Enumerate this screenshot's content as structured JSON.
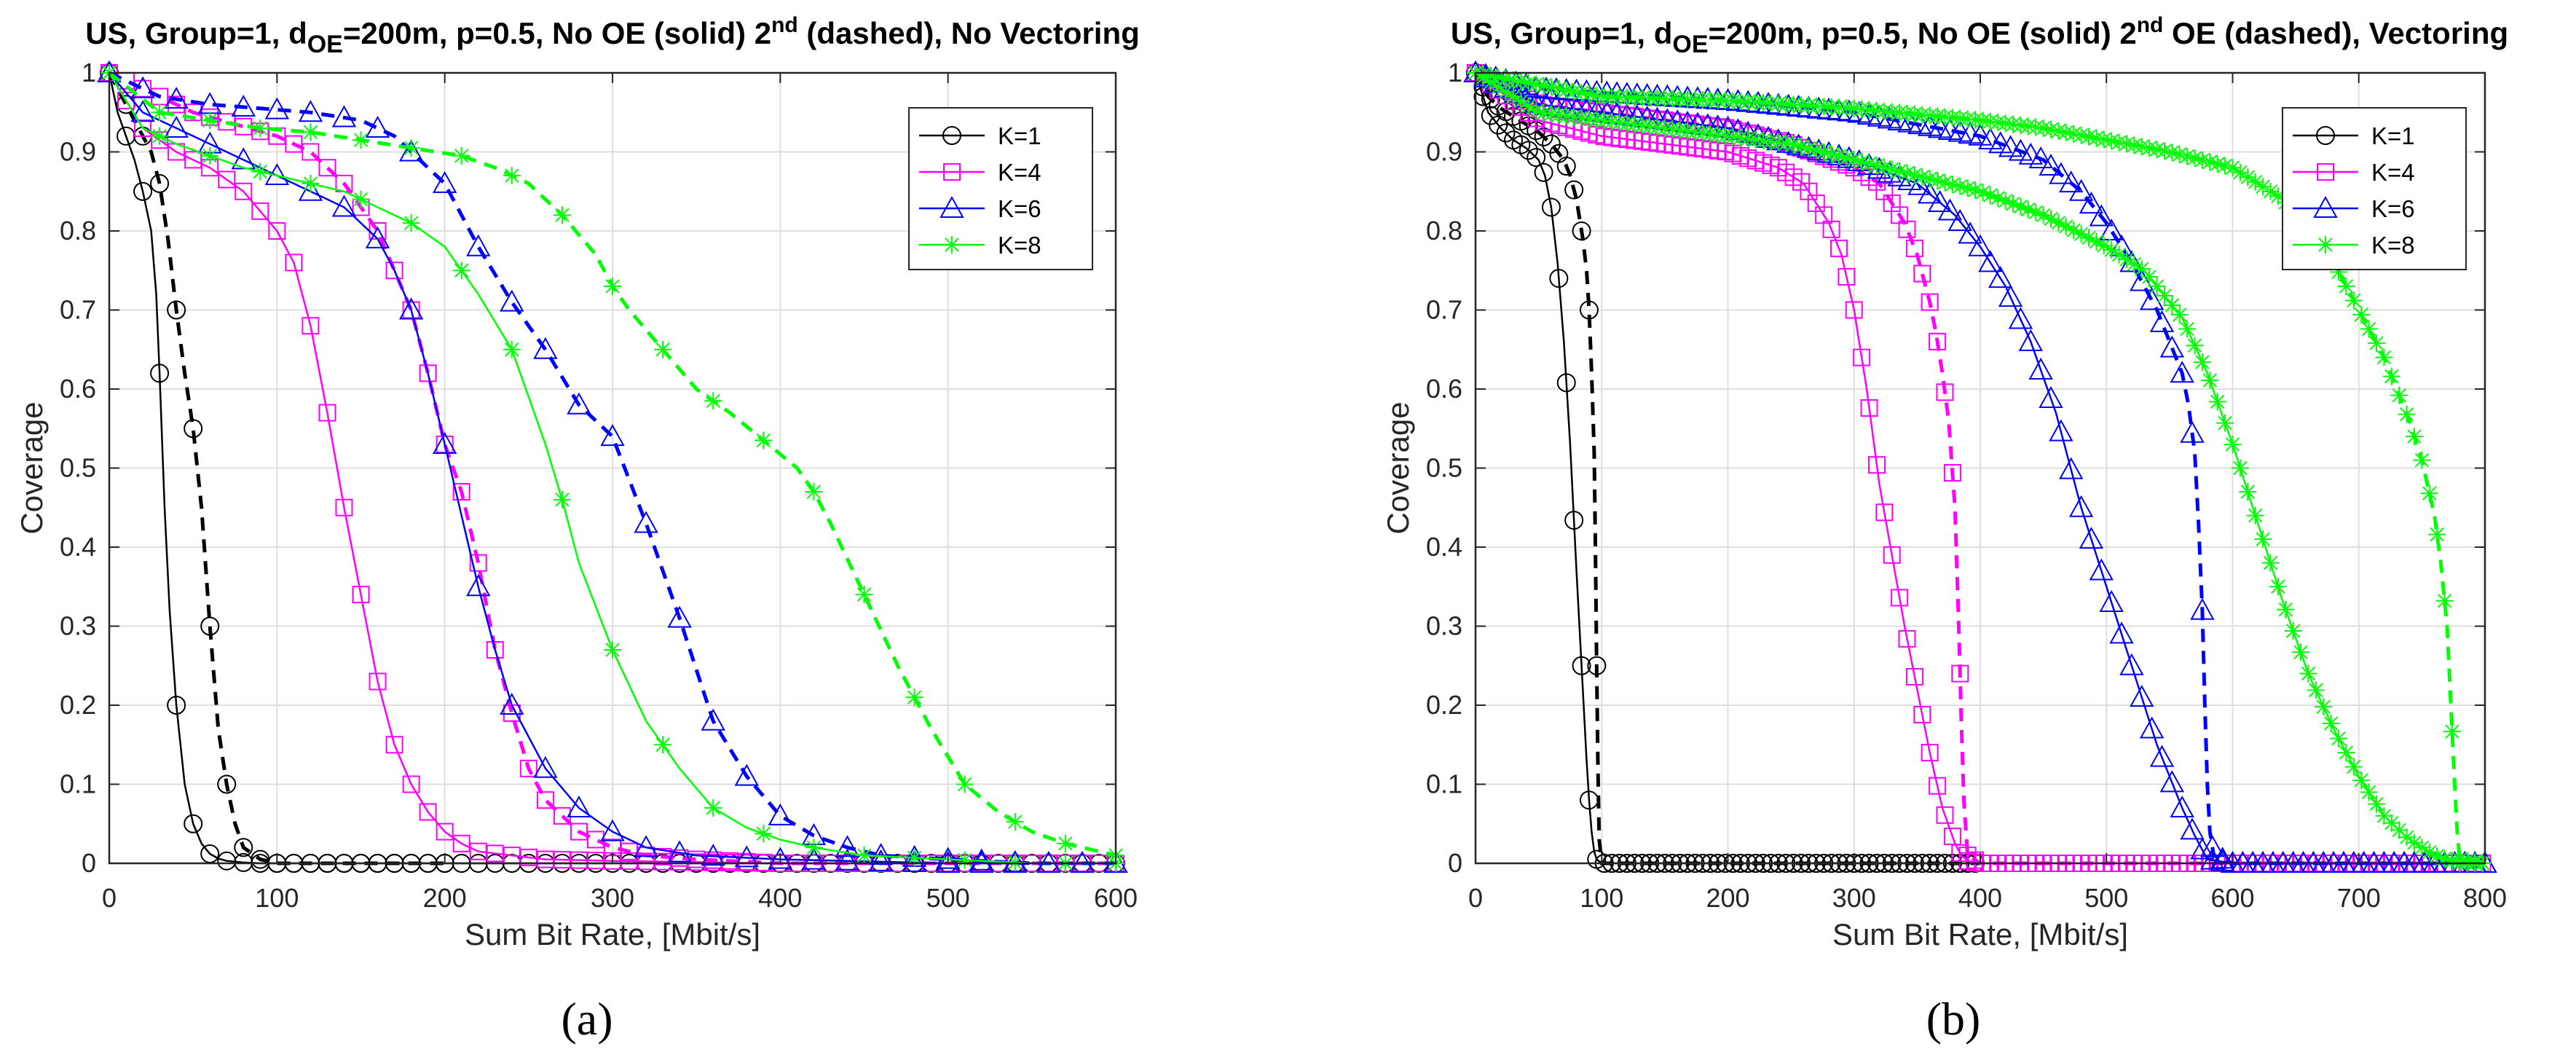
{
  "chart_data": [
    {
      "type": "line",
      "title": {
        "parts": [
          "US, Group=1, d",
          "OE",
          "=200m, p=0.5, No OE (solid) 2",
          "nd",
          " (dashed), No Vectoring"
        ]
      },
      "panel_label": "(a)",
      "xlabel": "Sum Bit Rate, [Mbit/s]",
      "ylabel": "Coverage",
      "xlim": [
        0,
        600
      ],
      "ylim": [
        0,
        1
      ],
      "xticks": [
        0,
        100,
        200,
        300,
        400,
        500,
        600
      ],
      "yticks": [
        0,
        0.1,
        0.2,
        0.3,
        0.4,
        0.5,
        0.6,
        0.7,
        0.8,
        0.9,
        1
      ],
      "ytick_labels": [
        "0",
        "0.1",
        "0.2",
        "0.3",
        "0.4",
        "0.5",
        "0.6",
        "0.7",
        "0.8",
        "0.9",
        "1"
      ],
      "grid": true,
      "legend_position": "top-right",
      "legend": [
        "K=1",
        "K=4",
        "K=6",
        "K=8"
      ],
      "series": [
        {
          "name": "K=1",
          "style": "solid",
          "color": "#000000",
          "marker": "circle",
          "x": [
            0,
            5,
            10,
            15,
            20,
            25,
            28,
            30,
            33,
            36,
            40,
            45,
            50,
            55,
            60,
            65,
            70,
            80,
            90,
            100,
            150,
            200,
            300,
            400,
            500,
            600
          ],
          "y": [
            1.0,
            0.95,
            0.92,
            0.89,
            0.85,
            0.8,
            0.72,
            0.62,
            0.45,
            0.32,
            0.2,
            0.1,
            0.05,
            0.025,
            0.012,
            0.006,
            0.003,
            0.001,
            0,
            0,
            0,
            0,
            0,
            0,
            0,
            0
          ]
        },
        {
          "name": "K=1",
          "style": "dashed",
          "color": "#000000",
          "marker": "circle",
          "x": [
            0,
            10,
            20,
            25,
            30,
            35,
            40,
            45,
            50,
            55,
            60,
            65,
            70,
            75,
            80,
            90,
            100,
            150,
            200
          ],
          "y": [
            1.0,
            0.96,
            0.92,
            0.9,
            0.86,
            0.79,
            0.7,
            0.62,
            0.55,
            0.45,
            0.3,
            0.17,
            0.1,
            0.05,
            0.02,
            0.005,
            0,
            0,
            0
          ]
        },
        {
          "name": "K=4",
          "style": "solid",
          "color": "#ff00ff",
          "marker": "square",
          "x": [
            0,
            20,
            40,
            60,
            80,
            100,
            110,
            120,
            130,
            140,
            150,
            160,
            170,
            180,
            190,
            200,
            210,
            220,
            240,
            260,
            300,
            400,
            500,
            600
          ],
          "y": [
            1.0,
            0.93,
            0.9,
            0.88,
            0.85,
            0.8,
            0.76,
            0.68,
            0.57,
            0.45,
            0.34,
            0.23,
            0.15,
            0.1,
            0.065,
            0.04,
            0.025,
            0.015,
            0.01,
            0.005,
            0.003,
            0,
            0,
            0
          ]
        },
        {
          "name": "K=4",
          "style": "dashed",
          "color": "#ff00ff",
          "marker": "square",
          "x": [
            0,
            50,
            100,
            120,
            140,
            160,
            180,
            190,
            200,
            210,
            220,
            230,
            240,
            250,
            260,
            280,
            300,
            320,
            350,
            400,
            500,
            600
          ],
          "y": [
            1.0,
            0.95,
            0.92,
            0.9,
            0.86,
            0.8,
            0.7,
            0.62,
            0.53,
            0.47,
            0.38,
            0.27,
            0.19,
            0.12,
            0.08,
            0.04,
            0.02,
            0.01,
            0.005,
            0,
            0,
            0
          ]
        },
        {
          "name": "K=6",
          "style": "solid",
          "color": "#0000ff",
          "marker": "triangle",
          "x": [
            0,
            20,
            40,
            60,
            80,
            100,
            120,
            140,
            160,
            170,
            180,
            190,
            200,
            210,
            220,
            230,
            240,
            260,
            280,
            300,
            320,
            350,
            400,
            500,
            600
          ],
          "y": [
            1.0,
            0.95,
            0.93,
            0.91,
            0.89,
            0.87,
            0.85,
            0.83,
            0.79,
            0.75,
            0.7,
            0.62,
            0.53,
            0.44,
            0.35,
            0.27,
            0.2,
            0.12,
            0.07,
            0.04,
            0.02,
            0.01,
            0.005,
            0,
            0
          ]
        },
        {
          "name": "K=6",
          "style": "dashed",
          "color": "#0000ff",
          "marker": "triangle",
          "x": [
            0,
            30,
            60,
            90,
            120,
            150,
            170,
            180,
            190,
            200,
            210,
            220,
            240,
            260,
            280,
            300,
            320,
            340,
            360,
            380,
            400,
            420,
            440,
            460,
            500,
            550,
            600
          ],
          "y": [
            1.0,
            0.97,
            0.96,
            0.955,
            0.95,
            0.94,
            0.92,
            0.9,
            0.88,
            0.86,
            0.82,
            0.78,
            0.71,
            0.65,
            0.58,
            0.54,
            0.43,
            0.31,
            0.18,
            0.11,
            0.06,
            0.035,
            0.02,
            0.01,
            0.005,
            0,
            0
          ]
        },
        {
          "name": "K=8",
          "style": "solid",
          "color": "#00ff00",
          "marker": "star",
          "x": [
            0,
            20,
            40,
            60,
            80,
            100,
            120,
            140,
            160,
            180,
            200,
            220,
            240,
            260,
            270,
            280,
            300,
            320,
            340,
            360,
            380,
            400,
            420,
            450,
            500,
            550,
            600
          ],
          "y": [
            1.0,
            0.93,
            0.91,
            0.895,
            0.88,
            0.87,
            0.86,
            0.85,
            0.83,
            0.81,
            0.78,
            0.72,
            0.65,
            0.53,
            0.46,
            0.38,
            0.27,
            0.18,
            0.12,
            0.07,
            0.045,
            0.03,
            0.02,
            0.01,
            0.005,
            0,
            0
          ]
        },
        {
          "name": "K=8",
          "style": "dashed",
          "color": "#00ff00",
          "marker": "star",
          "x": [
            0,
            30,
            60,
            90,
            120,
            150,
            180,
            210,
            230,
            250,
            270,
            290,
            300,
            310,
            330,
            350,
            370,
            390,
            410,
            420,
            430,
            450,
            470,
            490,
            510,
            530,
            550,
            570,
            590,
            600
          ],
          "y": [
            1.0,
            0.95,
            0.94,
            0.93,
            0.925,
            0.915,
            0.905,
            0.895,
            0.88,
            0.86,
            0.82,
            0.77,
            0.73,
            0.7,
            0.65,
            0.6,
            0.57,
            0.535,
            0.5,
            0.47,
            0.43,
            0.34,
            0.25,
            0.17,
            0.1,
            0.065,
            0.04,
            0.025,
            0.015,
            0.01
          ]
        }
      ]
    },
    {
      "type": "line",
      "title": {
        "parts": [
          "US, Group=1, d",
          "OE",
          "=200m, p=0.5, No OE (solid) 2",
          "nd",
          " OE (dashed), Vectoring"
        ]
      },
      "panel_label": "(b)",
      "xlabel": "Sum Bit Rate, [Mbit/s]",
      "ylabel": "Coverage",
      "xlim": [
        0,
        800
      ],
      "ylim": [
        0,
        1
      ],
      "xticks": [
        0,
        100,
        200,
        300,
        400,
        500,
        600,
        700,
        800
      ],
      "yticks": [
        0,
        0.1,
        0.2,
        0.3,
        0.4,
        0.5,
        0.6,
        0.7,
        0.8,
        0.9,
        1
      ],
      "ytick_labels": [
        "0",
        "0.1",
        "0.2",
        "0.3",
        "0.4",
        "0.5",
        "0.6",
        "0.7",
        "0.8",
        "0.9",
        "1"
      ],
      "grid": true,
      "legend_position": "top-right",
      "legend": [
        "K=1",
        "K=4",
        "K=6",
        "K=8"
      ],
      "series": [
        {
          "name": "K=1",
          "style": "solid",
          "color": "#000000",
          "marker": "circle",
          "x": [
            0,
            10,
            20,
            30,
            40,
            50,
            55,
            60,
            65,
            70,
            75,
            80,
            85,
            88,
            90,
            92,
            94,
            96,
            100,
            150,
            200,
            300,
            390
          ],
          "y": [
            1.0,
            0.95,
            0.93,
            0.915,
            0.905,
            0.89,
            0.87,
            0.83,
            0.76,
            0.66,
            0.53,
            0.37,
            0.22,
            0.13,
            0.08,
            0.04,
            0.015,
            0.005,
            0,
            0,
            0,
            0,
            0
          ]
        },
        {
          "name": "K=1",
          "style": "dashed",
          "color": "#000000",
          "marker": "circle",
          "x": [
            0,
            10,
            20,
            30,
            40,
            50,
            60,
            70,
            75,
            80,
            85,
            88,
            90,
            92,
            94,
            95,
            96,
            97,
            98,
            100,
            150,
            200,
            300,
            400
          ],
          "y": [
            1.0,
            0.97,
            0.955,
            0.945,
            0.935,
            0.925,
            0.91,
            0.89,
            0.87,
            0.84,
            0.79,
            0.75,
            0.7,
            0.62,
            0.52,
            0.4,
            0.25,
            0.12,
            0.03,
            0,
            0,
            0,
            0,
            0
          ]
        },
        {
          "name": "K=4",
          "style": "solid",
          "color": "#ff00ff",
          "marker": "square",
          "x": [
            0,
            50,
            100,
            150,
            200,
            240,
            260,
            280,
            290,
            300,
            310,
            320,
            330,
            340,
            350,
            360,
            370,
            380,
            385,
            390,
            400,
            500,
            600,
            700,
            800
          ],
          "y": [
            1.0,
            0.94,
            0.92,
            0.91,
            0.9,
            0.88,
            0.86,
            0.81,
            0.77,
            0.7,
            0.6,
            0.48,
            0.39,
            0.3,
            0.22,
            0.14,
            0.07,
            0.025,
            0.01,
            0.003,
            0,
            0,
            0,
            0,
            0
          ]
        },
        {
          "name": "K=4",
          "style": "dashed",
          "color": "#ff00ff",
          "marker": "square",
          "x": [
            0,
            50,
            100,
            150,
            200,
            250,
            300,
            320,
            340,
            350,
            360,
            365,
            370,
            375,
            380,
            383,
            385,
            387,
            390,
            400,
            500,
            600,
            700,
            800
          ],
          "y": [
            1.0,
            0.96,
            0.95,
            0.94,
            0.93,
            0.91,
            0.88,
            0.86,
            0.81,
            0.77,
            0.71,
            0.67,
            0.62,
            0.56,
            0.45,
            0.3,
            0.18,
            0.08,
            0.01,
            0,
            0,
            0,
            0,
            0
          ]
        },
        {
          "name": "K=6",
          "style": "solid",
          "color": "#0000ff",
          "marker": "triangle",
          "x": [
            0,
            50,
            100,
            150,
            200,
            250,
            300,
            350,
            380,
            400,
            420,
            440,
            460,
            480,
            500,
            520,
            540,
            560,
            570,
            580,
            600,
            700,
            800
          ],
          "y": [
            1.0,
            0.96,
            0.95,
            0.94,
            0.93,
            0.91,
            0.89,
            0.86,
            0.82,
            0.78,
            0.73,
            0.66,
            0.57,
            0.45,
            0.35,
            0.25,
            0.15,
            0.07,
            0.035,
            0.005,
            0,
            0,
            0
          ]
        },
        {
          "name": "K=6",
          "style": "dashed",
          "color": "#0000ff",
          "marker": "triangle",
          "x": [
            0,
            50,
            100,
            200,
            300,
            400,
            450,
            480,
            500,
            520,
            540,
            550,
            560,
            565,
            570,
            573,
            576,
            578,
            580,
            582,
            585,
            600,
            700,
            800
          ],
          "y": [
            1.0,
            0.98,
            0.975,
            0.965,
            0.95,
            0.92,
            0.89,
            0.85,
            0.81,
            0.76,
            0.7,
            0.66,
            0.62,
            0.58,
            0.52,
            0.43,
            0.32,
            0.2,
            0.1,
            0.04,
            0.01,
            0,
            0,
            0
          ]
        },
        {
          "name": "K=8",
          "style": "solid",
          "color": "#00ff00",
          "marker": "star",
          "x": [
            0,
            50,
            100,
            150,
            200,
            250,
            300,
            350,
            400,
            450,
            500,
            530,
            560,
            580,
            600,
            620,
            640,
            660,
            680,
            700,
            720,
            740,
            760,
            770,
            780,
            800
          ],
          "y": [
            1.0,
            0.95,
            0.94,
            0.93,
            0.92,
            0.91,
            0.89,
            0.87,
            0.85,
            0.82,
            0.78,
            0.75,
            0.69,
            0.62,
            0.53,
            0.43,
            0.33,
            0.24,
            0.17,
            0.11,
            0.06,
            0.03,
            0.01,
            0.005,
            0,
            0
          ]
        },
        {
          "name": "K=8",
          "style": "dashed",
          "color": "#00ff00",
          "marker": "star",
          "x": [
            0,
            100,
            200,
            300,
            400,
            450,
            500,
            550,
            600,
            640,
            680,
            700,
            720,
            740,
            750,
            760,
            765,
            770,
            773,
            776,
            778,
            780,
            800
          ],
          "y": [
            1.0,
            0.97,
            0.965,
            0.955,
            0.94,
            0.93,
            0.915,
            0.9,
            0.88,
            0.84,
            0.76,
            0.7,
            0.64,
            0.56,
            0.51,
            0.44,
            0.38,
            0.3,
            0.2,
            0.1,
            0.04,
            0.005,
            0
          ]
        }
      ]
    }
  ]
}
